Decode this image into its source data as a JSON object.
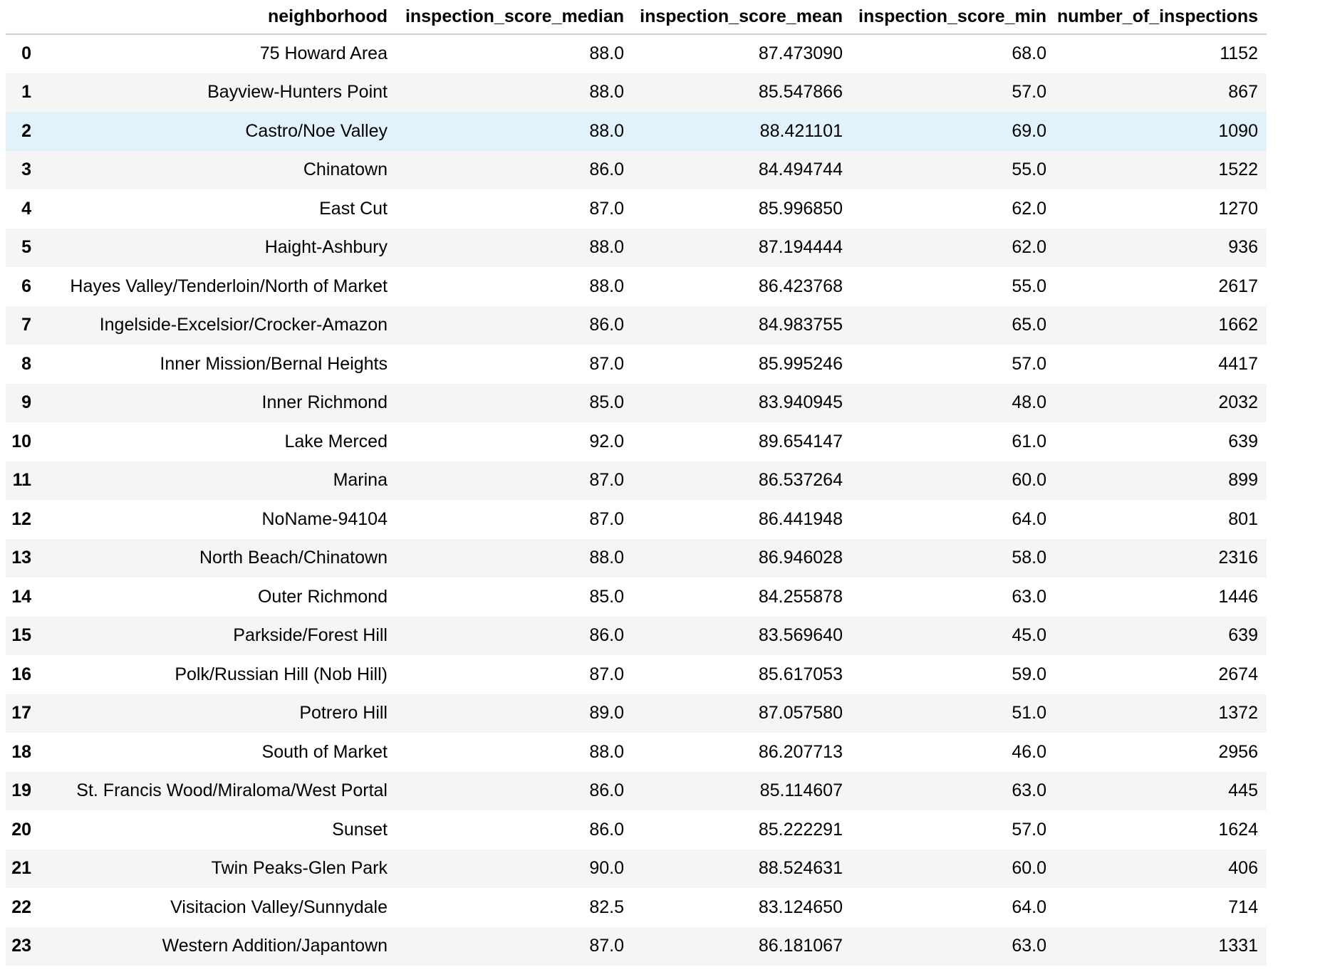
{
  "table": {
    "columns": [
      "",
      "neighborhood",
      "inspection_score_median",
      "inspection_score_mean",
      "inspection_score_min",
      "number_of_inspections"
    ],
    "highlighted_row_index": 2,
    "rows": [
      [
        "0",
        "75 Howard Area",
        "88.0",
        "87.473090",
        "68.0",
        "1152"
      ],
      [
        "1",
        "Bayview-Hunters Point",
        "88.0",
        "85.547866",
        "57.0",
        "867"
      ],
      [
        "2",
        "Castro/Noe Valley",
        "88.0",
        "88.421101",
        "69.0",
        "1090"
      ],
      [
        "3",
        "Chinatown",
        "86.0",
        "84.494744",
        "55.0",
        "1522"
      ],
      [
        "4",
        "East Cut",
        "87.0",
        "85.996850",
        "62.0",
        "1270"
      ],
      [
        "5",
        "Haight-Ashbury",
        "88.0",
        "87.194444",
        "62.0",
        "936"
      ],
      [
        "6",
        "Hayes Valley/Tenderloin/North of Market",
        "88.0",
        "86.423768",
        "55.0",
        "2617"
      ],
      [
        "7",
        "Ingelside-Excelsior/Crocker-Amazon",
        "86.0",
        "84.983755",
        "65.0",
        "1662"
      ],
      [
        "8",
        "Inner Mission/Bernal Heights",
        "87.0",
        "85.995246",
        "57.0",
        "4417"
      ],
      [
        "9",
        "Inner Richmond",
        "85.0",
        "83.940945",
        "48.0",
        "2032"
      ],
      [
        "10",
        "Lake Merced",
        "92.0",
        "89.654147",
        "61.0",
        "639"
      ],
      [
        "11",
        "Marina",
        "87.0",
        "86.537264",
        "60.0",
        "899"
      ],
      [
        "12",
        "NoName-94104",
        "87.0",
        "86.441948",
        "64.0",
        "801"
      ],
      [
        "13",
        "North Beach/Chinatown",
        "88.0",
        "86.946028",
        "58.0",
        "2316"
      ],
      [
        "14",
        "Outer Richmond",
        "85.0",
        "84.255878",
        "63.0",
        "1446"
      ],
      [
        "15",
        "Parkside/Forest Hill",
        "86.0",
        "83.569640",
        "45.0",
        "639"
      ],
      [
        "16",
        "Polk/Russian Hill (Nob Hill)",
        "87.0",
        "85.617053",
        "59.0",
        "2674"
      ],
      [
        "17",
        "Potrero Hill",
        "89.0",
        "87.057580",
        "51.0",
        "1372"
      ],
      [
        "18",
        "South of Market",
        "88.0",
        "86.207713",
        "46.0",
        "2956"
      ],
      [
        "19",
        "St. Francis Wood/Miraloma/West Portal",
        "86.0",
        "85.114607",
        "63.0",
        "445"
      ],
      [
        "20",
        "Sunset",
        "86.0",
        "85.222291",
        "57.0",
        "1624"
      ],
      [
        "21",
        "Twin Peaks-Glen Park",
        "90.0",
        "88.524631",
        "60.0",
        "406"
      ],
      [
        "22",
        "Visitacion Valley/Sunnydale",
        "82.5",
        "83.124650",
        "64.0",
        "714"
      ],
      [
        "23",
        "Western Addition/Japantown",
        "87.0",
        "86.181067",
        "63.0",
        "1331"
      ]
    ]
  }
}
